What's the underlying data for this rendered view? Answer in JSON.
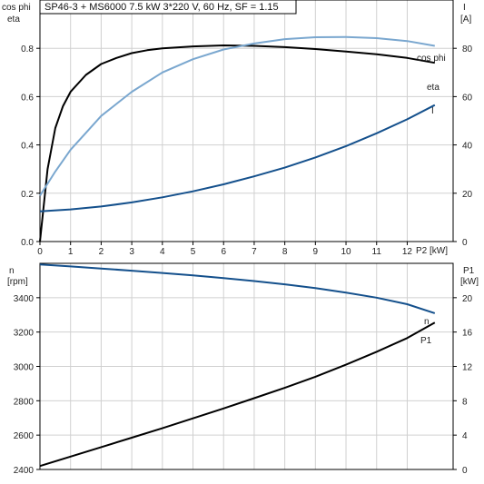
{
  "header": {
    "title": "SP46-3 + MS6000   7.5 kW   3*220 V, 60 Hz, SF = 1.15"
  },
  "colors": {
    "eta": "#000000",
    "cos_phi": "#7aa7cf",
    "current": "#14508c",
    "speed": "#14508c",
    "p1": "#000000"
  },
  "chart_data": [
    {
      "type": "line",
      "xlabel": "P2 [kW]",
      "ylabel_left": [
        "cos phi",
        "eta"
      ],
      "ylabel_right": [
        "I",
        "[A]"
      ],
      "xlim": [
        0,
        13.5
      ],
      "ylim_left": [
        0,
        1.0
      ],
      "ylim_right": [
        0,
        100
      ],
      "x_ticks": [
        "0",
        "1",
        "2",
        "3",
        "4",
        "5",
        "6",
        "7",
        "8",
        "9",
        "10",
        "11",
        "12"
      ],
      "x_tick_values": [
        0,
        1,
        2,
        3,
        4,
        5,
        6,
        7,
        8,
        9,
        10,
        11,
        12
      ],
      "y_left_ticks": [
        "0.0",
        "0.2",
        "0.4",
        "0.6",
        "0.8"
      ],
      "y_left_tick_values": [
        0,
        0.2,
        0.4,
        0.6,
        0.8
      ],
      "y_right_ticks": [
        "0",
        "20",
        "40",
        "60",
        "80"
      ],
      "y_right_tick_values": [
        0,
        20,
        40,
        60,
        80
      ],
      "grid": true,
      "series": [
        {
          "name": "eta",
          "axis": "left",
          "color": "#000000",
          "x": [
            0,
            0.25,
            0.5,
            0.75,
            1,
            1.5,
            2,
            2.5,
            3,
            3.5,
            4,
            5,
            6,
            7,
            8,
            9,
            10,
            11,
            12,
            12.9
          ],
          "y": [
            0,
            0.3,
            0.47,
            0.56,
            0.62,
            0.69,
            0.735,
            0.76,
            0.78,
            0.792,
            0.8,
            0.808,
            0.812,
            0.81,
            0.805,
            0.797,
            0.787,
            0.775,
            0.76,
            0.74
          ]
        },
        {
          "name": "cos phi",
          "axis": "left",
          "color": "#7aa7cf",
          "x": [
            0,
            0.5,
            1,
            1.5,
            2,
            3,
            4,
            5,
            6,
            7,
            8,
            9,
            10,
            11,
            12,
            12.9
          ],
          "y": [
            0.19,
            0.29,
            0.38,
            0.45,
            0.52,
            0.62,
            0.7,
            0.755,
            0.795,
            0.82,
            0.838,
            0.846,
            0.847,
            0.842,
            0.83,
            0.81
          ]
        },
        {
          "name": "I",
          "axis": "right",
          "color": "#14508c",
          "x": [
            0,
            1,
            2,
            3,
            4,
            5,
            6,
            7,
            8,
            9,
            10,
            11,
            12,
            12.9
          ],
          "y": [
            12.5,
            13.3,
            14.5,
            16.2,
            18.3,
            20.8,
            23.7,
            27,
            30.6,
            34.8,
            39.5,
            44.8,
            50.6,
            56.5
          ]
        }
      ]
    },
    {
      "type": "line",
      "xlabel": "",
      "ylabel_left": [
        "n",
        "[rpm]"
      ],
      "ylabel_right": [
        "P1",
        "[kW]"
      ],
      "xlim": [
        0,
        13.5
      ],
      "ylim_left": [
        2400,
        3600
      ],
      "ylim_right": [
        0,
        24
      ],
      "y_left_ticks": [
        "2400",
        "2600",
        "2800",
        "3000",
        "3200",
        "3400"
      ],
      "y_left_tick_values": [
        2400,
        2600,
        2800,
        3000,
        3200,
        3400
      ],
      "y_right_ticks": [
        "0",
        "4",
        "8",
        "12",
        "16",
        "20"
      ],
      "y_right_tick_values": [
        0,
        4,
        8,
        12,
        16,
        20
      ],
      "grid": true,
      "series": [
        {
          "name": "n",
          "axis": "left",
          "color": "#14508c",
          "x": [
            0,
            1,
            2,
            3,
            4,
            5,
            6,
            7,
            8,
            9,
            10,
            11,
            12,
            12.9
          ],
          "y": [
            3593,
            3582,
            3570,
            3557,
            3544,
            3530,
            3514,
            3497,
            3478,
            3456,
            3430,
            3400,
            3362,
            3310
          ]
        },
        {
          "name": "P1",
          "axis": "right",
          "color": "#000000",
          "x": [
            0,
            1,
            2,
            3,
            4,
            5,
            6,
            7,
            8,
            9,
            10,
            11,
            12,
            12.9
          ],
          "y": [
            0.4,
            1.5,
            2.6,
            3.7,
            4.8,
            5.95,
            7.1,
            8.3,
            9.5,
            10.8,
            12.2,
            13.7,
            15.3,
            17.1
          ]
        }
      ]
    }
  ]
}
